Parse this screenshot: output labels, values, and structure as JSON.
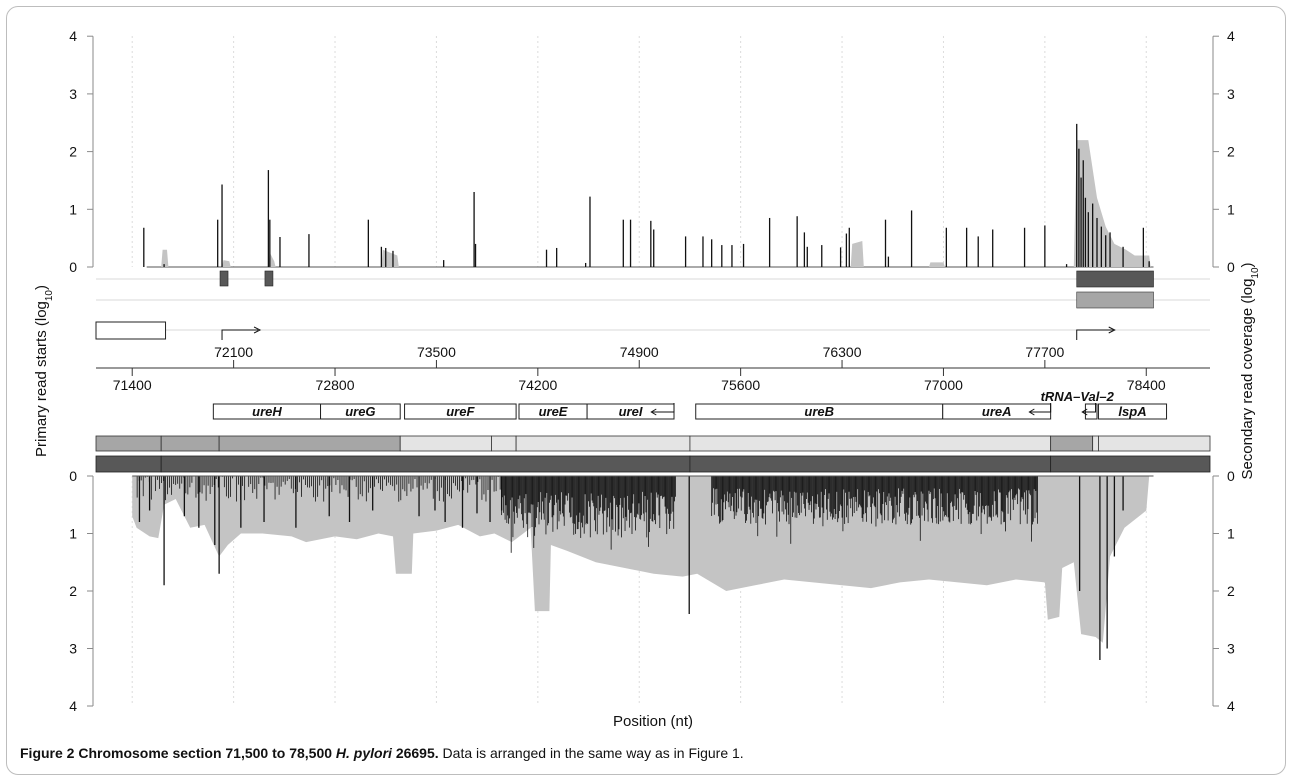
{
  "figure": {
    "caption_label": "Figure 2",
    "caption_title_pre": "Chromosome section 71,500 to 78,500 ",
    "caption_species": "H. pylori",
    "caption_title_post": " 26695.",
    "caption_body": "Data is arranged in the same way as in Figure 1."
  },
  "chart_data": {
    "type": "bar",
    "xlabel": "Position (nt)",
    "ylabel_left": "Primary read starts (log10)",
    "ylabel_right": "Secondary read coverage (log10)",
    "ylim": [
      0,
      4
    ],
    "yticks": [
      0,
      1,
      2,
      3,
      4
    ],
    "xrange": [
      71150,
      78840
    ],
    "position_ticks_upper": [
      72100,
      73500,
      74900,
      76300,
      77700
    ],
    "position_ticks_lower": [
      71400,
      72800,
      74200,
      75600,
      77000,
      78400
    ],
    "genes": [
      {
        "name": "ureH",
        "start": 71960,
        "end": 72700
      },
      {
        "name": "ureG",
        "start": 72700,
        "end": 73250
      },
      {
        "name": "ureF",
        "start": 73280,
        "end": 74050
      },
      {
        "name": "ureE",
        "start": 74070,
        "end": 74540
      },
      {
        "name": "ureI",
        "start": 74540,
        "end": 75140
      },
      {
        "name": "ureB",
        "start": 75290,
        "end": 76995
      },
      {
        "name": "ureA",
        "start": 76995,
        "end": 77740
      },
      {
        "name": "tRNA–Val–2",
        "start": 77980,
        "end": 78060
      },
      {
        "name": "lspA",
        "start": 78070,
        "end": 78540
      }
    ],
    "forward_strand": {
      "primary_peaks": [
        {
          "x": 71480,
          "y": 0.68
        },
        {
          "x": 71620,
          "y": 0.05
        },
        {
          "x": 71990,
          "y": 0.82
        },
        {
          "x": 72020,
          "y": 1.43
        },
        {
          "x": 72340,
          "y": 1.68
        },
        {
          "x": 72350,
          "y": 0.82
        },
        {
          "x": 72420,
          "y": 0.52
        },
        {
          "x": 72620,
          "y": 0.57
        },
        {
          "x": 73030,
          "y": 0.82
        },
        {
          "x": 73120,
          "y": 0.35
        },
        {
          "x": 73150,
          "y": 0.33
        },
        {
          "x": 73200,
          "y": 0.28
        },
        {
          "x": 73550,
          "y": 0.12
        },
        {
          "x": 73760,
          "y": 1.3
        },
        {
          "x": 73770,
          "y": 0.4
        },
        {
          "x": 74260,
          "y": 0.3
        },
        {
          "x": 74330,
          "y": 0.33
        },
        {
          "x": 74530,
          "y": 0.07
        },
        {
          "x": 74560,
          "y": 1.22
        },
        {
          "x": 74790,
          "y": 0.82
        },
        {
          "x": 74840,
          "y": 0.82
        },
        {
          "x": 74980,
          "y": 0.8
        },
        {
          "x": 75000,
          "y": 0.65
        },
        {
          "x": 75220,
          "y": 0.53
        },
        {
          "x": 75340,
          "y": 0.53
        },
        {
          "x": 75400,
          "y": 0.48
        },
        {
          "x": 75470,
          "y": 0.38
        },
        {
          "x": 75540,
          "y": 0.38
        },
        {
          "x": 75620,
          "y": 0.4
        },
        {
          "x": 75800,
          "y": 0.85
        },
        {
          "x": 75990,
          "y": 0.88
        },
        {
          "x": 76040,
          "y": 0.6
        },
        {
          "x": 76060,
          "y": 0.35
        },
        {
          "x": 76160,
          "y": 0.38
        },
        {
          "x": 76290,
          "y": 0.34
        },
        {
          "x": 76330,
          "y": 0.58
        },
        {
          "x": 76350,
          "y": 0.68
        },
        {
          "x": 76600,
          "y": 0.82
        },
        {
          "x": 76620,
          "y": 0.18
        },
        {
          "x": 76780,
          "y": 0.98
        },
        {
          "x": 77020,
          "y": 0.68
        },
        {
          "x": 77160,
          "y": 0.68
        },
        {
          "x": 77240,
          "y": 0.53
        },
        {
          "x": 77340,
          "y": 0.65
        },
        {
          "x": 77560,
          "y": 0.68
        },
        {
          "x": 77700,
          "y": 0.72
        },
        {
          "x": 77850,
          "y": 0.05
        },
        {
          "x": 77920,
          "y": 2.48
        },
        {
          "x": 77935,
          "y": 2.05
        },
        {
          "x": 77950,
          "y": 1.55
        },
        {
          "x": 77965,
          "y": 1.85
        },
        {
          "x": 77980,
          "y": 1.2
        },
        {
          "x": 78000,
          "y": 0.95
        },
        {
          "x": 78030,
          "y": 1.1
        },
        {
          "x": 78060,
          "y": 0.85
        },
        {
          "x": 78090,
          "y": 0.7
        },
        {
          "x": 78120,
          "y": 0.55
        },
        {
          "x": 78150,
          "y": 0.6
        },
        {
          "x": 78240,
          "y": 0.35
        },
        {
          "x": 78380,
          "y": 0.68
        },
        {
          "x": 78420,
          "y": 0.1
        }
      ],
      "coverage": [
        {
          "x": 71600,
          "y": 0
        },
        {
          "x": 71610,
          "y": 0.3
        },
        {
          "x": 71640,
          "y": 0.3
        },
        {
          "x": 71650,
          "y": 0
        },
        {
          "x": 72020,
          "y": 0
        },
        {
          "x": 72030,
          "y": 0.12
        },
        {
          "x": 72070,
          "y": 0.1
        },
        {
          "x": 72080,
          "y": 0
        },
        {
          "x": 72340,
          "y": 0
        },
        {
          "x": 72350,
          "y": 0.25
        },
        {
          "x": 72380,
          "y": 0.1
        },
        {
          "x": 72390,
          "y": 0
        },
        {
          "x": 73120,
          "y": 0
        },
        {
          "x": 73130,
          "y": 0.3
        },
        {
          "x": 73230,
          "y": 0.2
        },
        {
          "x": 73240,
          "y": 0
        },
        {
          "x": 76360,
          "y": 0
        },
        {
          "x": 76370,
          "y": 0.4
        },
        {
          "x": 76440,
          "y": 0.45
        },
        {
          "x": 76450,
          "y": 0
        },
        {
          "x": 76900,
          "y": 0
        },
        {
          "x": 76910,
          "y": 0.08
        },
        {
          "x": 77000,
          "y": 0.08
        },
        {
          "x": 77010,
          "y": 0
        },
        {
          "x": 77900,
          "y": 0
        },
        {
          "x": 77920,
          "y": 2.2
        },
        {
          "x": 78000,
          "y": 2.2
        },
        {
          "x": 78060,
          "y": 1.2
        },
        {
          "x": 78120,
          "y": 0.7
        },
        {
          "x": 78180,
          "y": 0.4
        },
        {
          "x": 78260,
          "y": 0.3
        },
        {
          "x": 78320,
          "y": 0.2
        },
        {
          "x": 78420,
          "y": 0.2
        },
        {
          "x": 78430,
          "y": 0
        }
      ],
      "tss_arrows": [
        {
          "x": 72020
        },
        {
          "x": 77920
        }
      ],
      "upstream_box": {
        "start": 71150,
        "end": 71630
      }
    },
    "reverse_strand": {
      "primary_peaks": [
        {
          "x": 71450,
          "y": 0.8
        },
        {
          "x": 71520,
          "y": 0.6
        },
        {
          "x": 71620,
          "y": 1.9
        },
        {
          "x": 71760,
          "y": 0.7
        },
        {
          "x": 71860,
          "y": 0.9
        },
        {
          "x": 71970,
          "y": 1.2
        },
        {
          "x": 72000,
          "y": 1.7
        },
        {
          "x": 72150,
          "y": 0.9
        },
        {
          "x": 72310,
          "y": 0.8
        },
        {
          "x": 72530,
          "y": 0.9
        },
        {
          "x": 72760,
          "y": 0.7
        },
        {
          "x": 72900,
          "y": 0.8
        },
        {
          "x": 73060,
          "y": 0.6
        },
        {
          "x": 73380,
          "y": 0.7
        },
        {
          "x": 73490,
          "y": 0.6
        },
        {
          "x": 73560,
          "y": 0.8
        },
        {
          "x": 73680,
          "y": 0.9
        },
        {
          "x": 73780,
          "y": 0.65
        },
        {
          "x": 73870,
          "y": 0.8
        },
        {
          "x": 73950,
          "y": 0.6
        },
        {
          "x": 75245,
          "y": 2.4
        },
        {
          "x": 77940,
          "y": 2.0
        },
        {
          "x": 78080,
          "y": 3.2
        },
        {
          "x": 78130,
          "y": 3.0
        },
        {
          "x": 78180,
          "y": 1.4
        },
        {
          "x": 78240,
          "y": 0.6
        }
      ],
      "dense_clusters": [
        {
          "start": 73950,
          "end": 75150,
          "depth": 1.1,
          "spike": 1.4
        },
        {
          "start": 75400,
          "end": 77650,
          "depth": 0.85,
          "spike": 1.2
        }
      ],
      "coverage": [
        {
          "x": 71400,
          "y": 0.7
        },
        {
          "x": 71430,
          "y": 0.9
        },
        {
          "x": 71520,
          "y": 1.05
        },
        {
          "x": 71580,
          "y": 1.08
        },
        {
          "x": 71620,
          "y": 0.5
        },
        {
          "x": 71700,
          "y": 0.4
        },
        {
          "x": 71800,
          "y": 0.9
        },
        {
          "x": 71900,
          "y": 0.85
        },
        {
          "x": 72000,
          "y": 1.4
        },
        {
          "x": 72060,
          "y": 1.2
        },
        {
          "x": 72150,
          "y": 1.0
        },
        {
          "x": 72300,
          "y": 1.0
        },
        {
          "x": 72500,
          "y": 1.05
        },
        {
          "x": 72600,
          "y": 1.15
        },
        {
          "x": 72800,
          "y": 1.05
        },
        {
          "x": 72950,
          "y": 1.1
        },
        {
          "x": 73100,
          "y": 1.0
        },
        {
          "x": 73200,
          "y": 1.05
        },
        {
          "x": 73220,
          "y": 1.7
        },
        {
          "x": 73330,
          "y": 1.7
        },
        {
          "x": 73340,
          "y": 1.0
        },
        {
          "x": 73500,
          "y": 0.95
        },
        {
          "x": 73650,
          "y": 0.85
        },
        {
          "x": 73800,
          "y": 1.05
        },
        {
          "x": 73900,
          "y": 1.0
        },
        {
          "x": 74020,
          "y": 1.15
        },
        {
          "x": 74100,
          "y": 1.0
        },
        {
          "x": 74150,
          "y": 0.9
        },
        {
          "x": 74180,
          "y": 2.35
        },
        {
          "x": 74280,
          "y": 2.35
        },
        {
          "x": 74290,
          "y": 1.2
        },
        {
          "x": 74400,
          "y": 1.3
        },
        {
          "x": 74600,
          "y": 1.5
        },
        {
          "x": 74800,
          "y": 1.6
        },
        {
          "x": 75000,
          "y": 1.7
        },
        {
          "x": 75200,
          "y": 1.75
        },
        {
          "x": 75300,
          "y": 1.7
        },
        {
          "x": 75400,
          "y": 1.85
        },
        {
          "x": 75500,
          "y": 2.0
        },
        {
          "x": 75700,
          "y": 1.9
        },
        {
          "x": 75900,
          "y": 1.8
        },
        {
          "x": 76100,
          "y": 1.85
        },
        {
          "x": 76300,
          "y": 1.9
        },
        {
          "x": 76500,
          "y": 1.95
        },
        {
          "x": 76700,
          "y": 1.85
        },
        {
          "x": 76900,
          "y": 1.8
        },
        {
          "x": 77100,
          "y": 1.85
        },
        {
          "x": 77300,
          "y": 1.9
        },
        {
          "x": 77500,
          "y": 1.8
        },
        {
          "x": 77700,
          "y": 1.85
        },
        {
          "x": 77720,
          "y": 2.5
        },
        {
          "x": 77800,
          "y": 2.45
        },
        {
          "x": 77820,
          "y": 1.6
        },
        {
          "x": 77900,
          "y": 1.5
        },
        {
          "x": 77950,
          "y": 2.75
        },
        {
          "x": 78050,
          "y": 2.8
        },
        {
          "x": 78100,
          "y": 2.9
        },
        {
          "x": 78150,
          "y": 1.4
        },
        {
          "x": 78250,
          "y": 0.9
        },
        {
          "x": 78400,
          "y": 0.6
        },
        {
          "x": 78420,
          "y": 0
        }
      ]
    },
    "colors": {
      "primary": "#111111",
      "coverage": "#c4c4c4",
      "operon_dark": "#585858",
      "operon_light": "#a6a6a6",
      "grid": "#dcdcdc",
      "axis": "#8a8a8a"
    }
  }
}
